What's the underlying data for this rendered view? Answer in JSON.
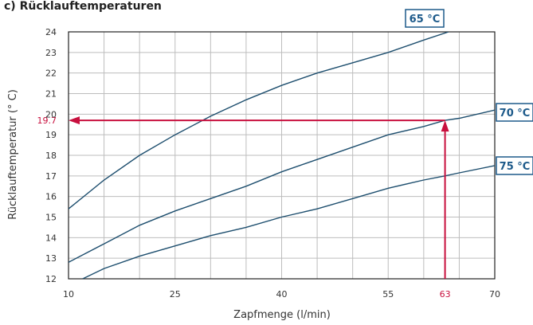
{
  "chart_data": {
    "type": "line",
    "title": "c) Rücklauftemperaturen",
    "xlabel": "Zapfmenge (l/min)",
    "ylabel": "Rücklauftemperatur (° C)",
    "xlim": [
      10,
      70
    ],
    "ylim": [
      12,
      24
    ],
    "x_ticks": [
      "10",
      "25",
      "40",
      "55",
      "70"
    ],
    "y_ticks": [
      "12",
      "13",
      "14",
      "15",
      "16",
      "17",
      "18",
      "19",
      "20",
      "21",
      "22",
      "23",
      "24"
    ],
    "grid": true,
    "series": [
      {
        "name": "65 °C",
        "x": [
          10,
          15,
          20,
          25,
          30,
          35,
          40,
          45,
          50,
          55,
          60,
          63.5
        ],
        "y": [
          15.4,
          16.8,
          18.0,
          19.0,
          19.9,
          20.7,
          21.4,
          22.0,
          22.5,
          23.0,
          23.6,
          24.0
        ]
      },
      {
        "name": "70 °C",
        "x": [
          10,
          15,
          20,
          25,
          30,
          35,
          40,
          45,
          50,
          55,
          60,
          63,
          65,
          70
        ],
        "y": [
          12.8,
          13.7,
          14.6,
          15.3,
          15.9,
          16.5,
          17.2,
          17.8,
          18.4,
          19.0,
          19.4,
          19.7,
          19.8,
          20.2
        ]
      },
      {
        "name": "75 °C",
        "x": [
          12,
          15,
          20,
          25,
          30,
          35,
          40,
          45,
          50,
          55,
          60,
          63,
          65,
          70
        ],
        "y": [
          12.0,
          12.5,
          13.1,
          13.6,
          14.1,
          14.5,
          15.0,
          15.4,
          15.9,
          16.4,
          16.8,
          17.0,
          17.15,
          17.5
        ]
      }
    ],
    "highlight": {
      "x": 63,
      "y": 19.7,
      "x_label": "63",
      "y_label": "19.7",
      "color": "#c8103e"
    },
    "line_color": "#1d4e6e",
    "label_color": "#1d5a8a"
  }
}
